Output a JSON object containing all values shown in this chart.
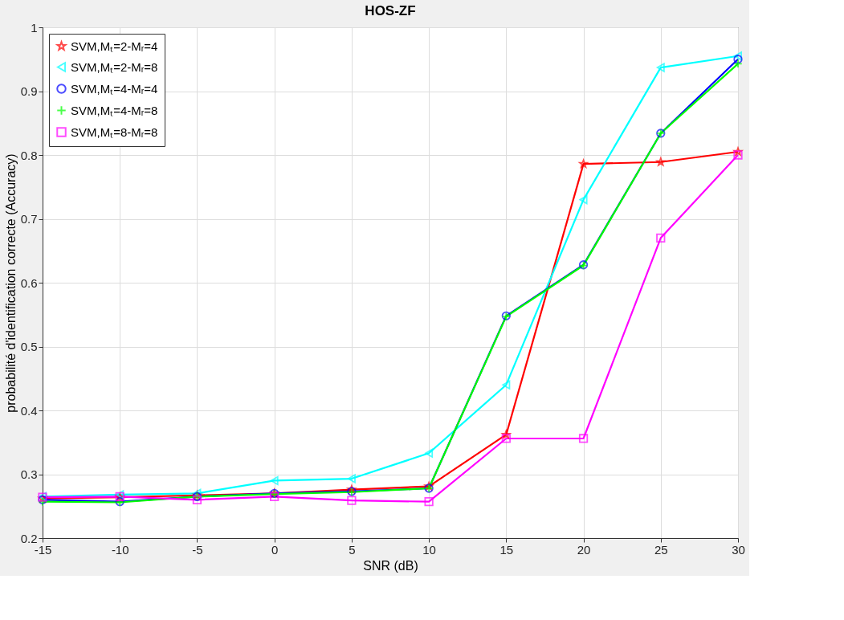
{
  "chart_data": {
    "type": "line",
    "title": "HOS-ZF",
    "xlabel": "SNR (dB)",
    "ylabel": "probabilité d'identification correcte (Accuracy)",
    "x": [
      -15,
      -10,
      -5,
      0,
      5,
      10,
      15,
      20,
      25,
      30
    ],
    "series": [
      {
        "name": "SVM,Mₜ=2-Mᵣ=4",
        "color": "#ff0000",
        "marker": "star",
        "values": [
          0.262,
          0.264,
          0.267,
          0.27,
          0.276,
          0.281,
          0.362,
          0.786,
          0.789,
          0.805
        ]
      },
      {
        "name": "SVM,Mₜ=2-Mᵣ=8",
        "color": "#00ffff",
        "marker": "triangle",
        "values": [
          0.265,
          0.268,
          0.27,
          0.29,
          0.293,
          0.333,
          0.44,
          0.73,
          0.937,
          0.955
        ]
      },
      {
        "name": "SVM,Mₜ=4-Mᵣ=4",
        "color": "#0000ff",
        "marker": "circle",
        "values": [
          0.26,
          0.257,
          0.265,
          0.27,
          0.273,
          0.278,
          0.548,
          0.628,
          0.834,
          0.95
        ]
      },
      {
        "name": "SVM,Mₜ=4-Mᵣ=8",
        "color": "#00ff00",
        "marker": "cross",
        "values": [
          0.257,
          0.256,
          0.265,
          0.269,
          0.272,
          0.278,
          0.547,
          0.627,
          0.834,
          0.943
        ]
      },
      {
        "name": "SVM,Mₜ=8-Mᵣ=8",
        "color": "#ff00ff",
        "marker": "square",
        "values": [
          0.264,
          0.265,
          0.26,
          0.265,
          0.259,
          0.257,
          0.356,
          0.356,
          0.67,
          0.8
        ]
      }
    ],
    "xlim": [
      -15,
      30
    ],
    "xticks": [
      -15,
      -10,
      -5,
      0,
      5,
      10,
      15,
      20,
      25,
      30
    ],
    "ylim": [
      0.2,
      1
    ],
    "yticks": [
      0.2,
      0.3,
      0.4,
      0.5,
      0.6,
      0.7,
      0.8,
      0.9,
      1
    ],
    "grid": true,
    "legend": "top left",
    "line_style": "solid"
  }
}
